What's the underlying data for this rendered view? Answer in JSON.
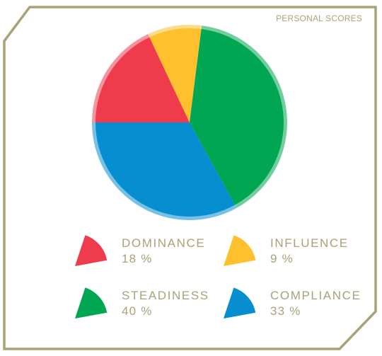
{
  "header": {
    "title": "PERSONAL SCORES"
  },
  "colors": {
    "frame": "#a9a278",
    "text": "#a9a278"
  },
  "chart_data": {
    "type": "pie",
    "title": "",
    "slices": [
      {
        "label": "DOMINANCE",
        "value": 18,
        "display": "18 %",
        "color": "#ef3b4b"
      },
      {
        "label": "INFLUENCE",
        "value": 9,
        "display": "9 %",
        "color": "#fec02c"
      },
      {
        "label": "STEADINESS",
        "value": 40,
        "display": "40 %",
        "color": "#00a651"
      },
      {
        "label": "COMPLIANCE",
        "value": 33,
        "display": "33 %",
        "color": "#068ed0"
      }
    ],
    "legend_position": "bottom"
  }
}
